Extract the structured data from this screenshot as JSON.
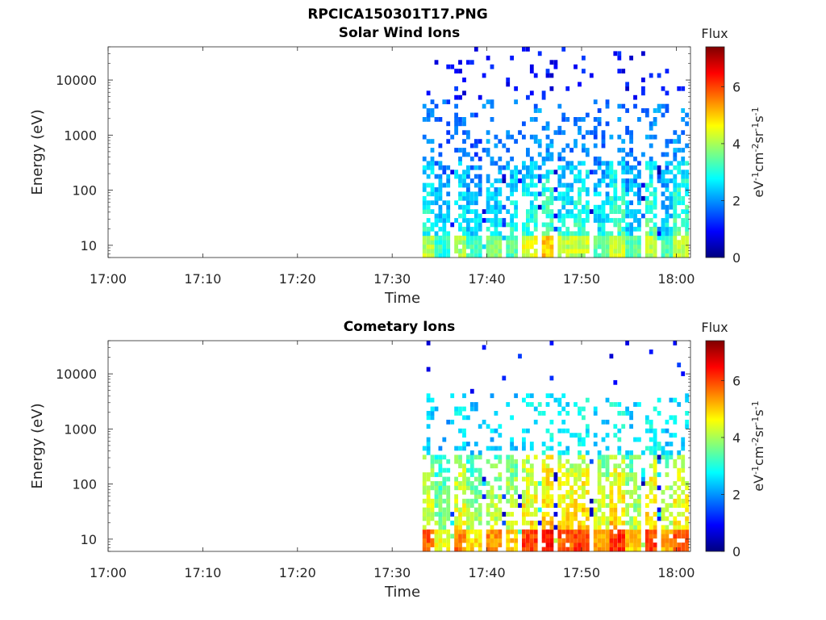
{
  "figure": {
    "title": "RPCICA150301T17.PNG"
  },
  "chart_data": [
    {
      "type": "heatmap",
      "title": "Solar Wind Ions",
      "xlabel": "Time",
      "ylabel": "Energy (eV)",
      "x_tick_labels": [
        "17:00",
        "17:10",
        "17:20",
        "17:30",
        "17:40",
        "17:50",
        "18:00"
      ],
      "x_range_minutes": [
        0,
        61.5
      ],
      "y_scale": "log",
      "y_tick_labels": [
        "10",
        "100",
        "1000",
        "10000"
      ],
      "y_range": [
        6,
        40000
      ],
      "colorbar": {
        "label": "Flux",
        "units": "eV-1cm-2sr-1s-1",
        "ticks": [
          "0",
          "2",
          "4",
          "6"
        ],
        "range": [
          0,
          7.4
        ],
        "colormap": [
          "#00007f",
          "#0000ff",
          "#007fff",
          "#00ffff",
          "#7fff7f",
          "#ffff00",
          "#ff7f00",
          "#ff0000",
          "#7f0000"
        ]
      },
      "data_start_minute": 33.2,
      "clusters": [
        {
          "t": 33.6,
          "low": 4.5,
          "mid": 3.0,
          "top": 1.4
        },
        {
          "t": 35.0,
          "low": 3.5,
          "mid": 2.5,
          "top": 1.2
        },
        {
          "t": 37.0,
          "low": 4.4,
          "mid": 3.0,
          "top": 1.5
        },
        {
          "t": 38.4,
          "low": 3.6,
          "mid": 2.6,
          "top": 1.2
        },
        {
          "t": 40.5,
          "low": 4.2,
          "mid": 2.8,
          "top": 1.5
        },
        {
          "t": 42.5,
          "low": 3.8,
          "mid": 3.0,
          "top": 1.3
        },
        {
          "t": 44.4,
          "low": 4.8,
          "mid": 3.2,
          "top": 1.4
        },
        {
          "t": 46.3,
          "low": 5.4,
          "mid": 3.5,
          "top": 1.6
        },
        {
          "t": 48.0,
          "low": 4.6,
          "mid": 3.0,
          "top": 1.4
        },
        {
          "t": 49.8,
          "low": 4.6,
          "mid": 3.3,
          "top": 1.5
        },
        {
          "t": 51.8,
          "low": 3.8,
          "mid": 2.8,
          "top": 1.3
        },
        {
          "t": 53.6,
          "low": 4.6,
          "mid": 3.3,
          "top": 1.5
        },
        {
          "t": 55.3,
          "low": 3.8,
          "mid": 2.6,
          "top": 1.2
        },
        {
          "t": 57.2,
          "low": 4.6,
          "mid": 3.4,
          "top": 1.5
        },
        {
          "t": 58.8,
          "low": 3.8,
          "mid": 2.7,
          "top": 1.2
        },
        {
          "t": 60.4,
          "low": 4.6,
          "mid": 3.4,
          "top": 1.6
        }
      ]
    },
    {
      "type": "heatmap",
      "title": "Cometary Ions",
      "xlabel": "Time",
      "ylabel": "Energy (eV)",
      "x_tick_labels": [
        "17:00",
        "17:10",
        "17:20",
        "17:30",
        "17:40",
        "17:50",
        "18:00"
      ],
      "x_range_minutes": [
        0,
        61.5
      ],
      "y_scale": "log",
      "y_tick_labels": [
        "10",
        "100",
        "1000",
        "10000"
      ],
      "y_range": [
        6,
        40000
      ],
      "colorbar": {
        "label": "Flux",
        "units": "eV-1cm-2sr-1s-1",
        "ticks": [
          "0",
          "2",
          "4",
          "6"
        ],
        "range": [
          0,
          7.4
        ],
        "colormap": [
          "#00007f",
          "#0000ff",
          "#007fff",
          "#00ffff",
          "#7fff7f",
          "#ffff00",
          "#ff7f00",
          "#ff0000",
          "#7f0000"
        ]
      },
      "data_start_minute": 33.2,
      "clusters": [
        {
          "t": 33.6,
          "low": 6.2,
          "mid": 4.5,
          "top": 2.0
        },
        {
          "t": 35.0,
          "low": 5.0,
          "mid": 3.8,
          "top": 1.8
        },
        {
          "t": 37.0,
          "low": 6.0,
          "mid": 4.6,
          "top": 2.2
        },
        {
          "t": 38.4,
          "low": 5.2,
          "mid": 4.0,
          "top": 1.8
        },
        {
          "t": 40.5,
          "low": 5.8,
          "mid": 4.2,
          "top": 2.0
        },
        {
          "t": 42.5,
          "low": 5.4,
          "mid": 4.3,
          "top": 2.0
        },
        {
          "t": 44.4,
          "low": 6.4,
          "mid": 4.8,
          "top": 2.2
        },
        {
          "t": 46.3,
          "low": 6.8,
          "mid": 5.2,
          "top": 2.4
        },
        {
          "t": 48.0,
          "low": 6.2,
          "mid": 4.8,
          "top": 2.2
        },
        {
          "t": 49.8,
          "low": 6.4,
          "mid": 5.0,
          "top": 2.4
        },
        {
          "t": 51.8,
          "low": 5.6,
          "mid": 4.4,
          "top": 2.0
        },
        {
          "t": 53.6,
          "low": 6.6,
          "mid": 5.0,
          "top": 2.4
        },
        {
          "t": 55.3,
          "low": 5.4,
          "mid": 4.2,
          "top": 2.0
        },
        {
          "t": 57.2,
          "low": 6.4,
          "mid": 5.0,
          "top": 2.4
        },
        {
          "t": 58.8,
          "low": 5.6,
          "mid": 4.3,
          "top": 2.0
        },
        {
          "t": 60.4,
          "low": 6.2,
          "mid": 4.8,
          "top": 2.2
        }
      ]
    }
  ]
}
